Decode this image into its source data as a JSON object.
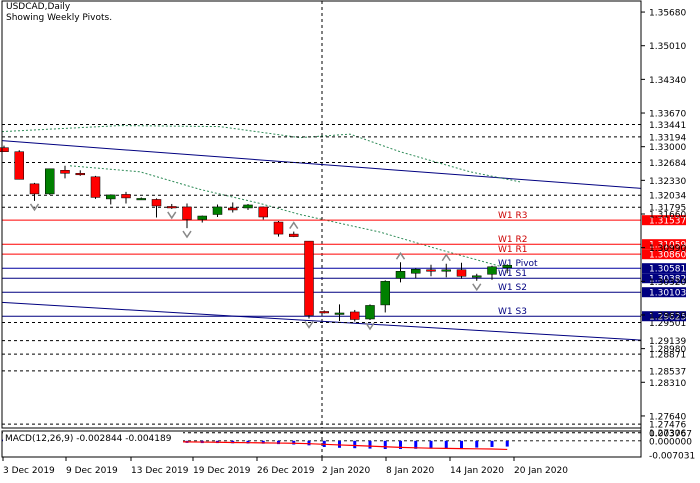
{
  "header": {
    "symbol_line": "USDCAD,Daily",
    "subtitle": "Showing Weekly Pivots."
  },
  "macd_label": "MACD(12,26,9) -0.002844 -0.004189",
  "chart_data": {
    "type": "candlestick",
    "title": "USDCAD,Daily",
    "subtitle": "Showing Weekly Pivots.",
    "ylim": [
      1.274,
      1.359
    ],
    "y_ticks": [
      "1.35680",
      "1.35010",
      "1.34340",
      "1.33670",
      "1.33000",
      "1.32330",
      "1.31660",
      "1.30990",
      "1.30320",
      "1.29650",
      "1.28980",
      "1.28310",
      "1.27640"
    ],
    "x_ticks": [
      "3 Dec 2019",
      "9 Dec 2019",
      "13 Dec 2019",
      "19 Dec 2019",
      "26 Dec 2019",
      "2 Jan 2020",
      "8 Jan 2020",
      "14 Jan 2020",
      "20 Jan 2020"
    ],
    "candles": [
      {
        "o": 1.3298,
        "h": 1.3302,
        "l": 1.329,
        "c": 1.329
      },
      {
        "o": 1.329,
        "h": 1.3293,
        "l": 1.3235,
        "c": 1.3235
      },
      {
        "o": 1.3226,
        "h": 1.3228,
        "l": 1.3192,
        "c": 1.3206
      },
      {
        "o": 1.3206,
        "h": 1.3256,
        "l": 1.3204,
        "c": 1.3256
      },
      {
        "o": 1.3253,
        "h": 1.3262,
        "l": 1.3237,
        "c": 1.3247
      },
      {
        "o": 1.3247,
        "h": 1.3253,
        "l": 1.3242,
        "c": 1.3245
      },
      {
        "o": 1.324,
        "h": 1.3242,
        "l": 1.3196,
        "c": 1.3199
      },
      {
        "o": 1.3196,
        "h": 1.3205,
        "l": 1.3185,
        "c": 1.3204
      },
      {
        "o": 1.3205,
        "h": 1.321,
        "l": 1.3187,
        "c": 1.3198
      },
      {
        "o": 1.3196,
        "h": 1.3199,
        "l": 1.3194,
        "c": 1.3197
      },
      {
        "o": 1.3195,
        "h": 1.3197,
        "l": 1.3159,
        "c": 1.3182
      },
      {
        "o": 1.3181,
        "h": 1.3186,
        "l": 1.3176,
        "c": 1.318
      },
      {
        "o": 1.318,
        "h": 1.3187,
        "l": 1.3138,
        "c": 1.3155
      },
      {
        "o": 1.3155,
        "h": 1.3163,
        "l": 1.3149,
        "c": 1.3162
      },
      {
        "o": 1.3165,
        "h": 1.3185,
        "l": 1.316,
        "c": 1.318
      },
      {
        "o": 1.3178,
        "h": 1.3189,
        "l": 1.3169,
        "c": 1.3174
      },
      {
        "o": 1.3178,
        "h": 1.3186,
        "l": 1.3174,
        "c": 1.3184
      },
      {
        "o": 1.318,
        "h": 1.3181,
        "l": 1.3155,
        "c": 1.316
      },
      {
        "o": 1.315,
        "h": 1.3152,
        "l": 1.3121,
        "c": 1.3126
      },
      {
        "o": 1.3126,
        "h": 1.3131,
        "l": 1.312,
        "c": 1.3121
      },
      {
        "o": 1.3112,
        "h": 1.3112,
        "l": 1.2958,
        "c": 1.2964
      },
      {
        "o": 1.2972,
        "h": 1.2974,
        "l": 1.2968,
        "c": 1.2969
      },
      {
        "o": 1.2969,
        "h": 1.2986,
        "l": 1.2953,
        "c": 1.2969
      },
      {
        "o": 1.2971,
        "h": 1.2975,
        "l": 1.2952,
        "c": 1.2956
      },
      {
        "o": 1.2957,
        "h": 1.2986,
        "l": 1.2955,
        "c": 1.2984
      },
      {
        "o": 1.2985,
        "h": 1.3034,
        "l": 1.297,
        "c": 1.3032
      },
      {
        "o": 1.3038,
        "h": 1.307,
        "l": 1.303,
        "c": 1.3052
      },
      {
        "o": 1.3048,
        "h": 1.3058,
        "l": 1.3038,
        "c": 1.3056
      },
      {
        "o": 1.3055,
        "h": 1.3065,
        "l": 1.3042,
        "c": 1.3052
      },
      {
        "o": 1.3052,
        "h": 1.3067,
        "l": 1.304,
        "c": 1.3055
      },
      {
        "o": 1.3055,
        "h": 1.3069,
        "l": 1.3037,
        "c": 1.3042
      },
      {
        "o": 1.3042,
        "h": 1.3047,
        "l": 1.3033,
        "c": 1.3043
      },
      {
        "o": 1.3046,
        "h": 1.3063,
        "l": 1.3035,
        "c": 1.3061
      },
      {
        "o": 1.3059,
        "h": 1.3066,
        "l": 1.3048,
        "c": 1.3064
      }
    ],
    "pivot_levels": [
      {
        "name": "W1 R3",
        "value": 1.31537
      },
      {
        "name": "W1 R2",
        "value": 1.31059
      },
      {
        "name": "W1 R1",
        "value": 1.3086
      },
      {
        "name": "W1 Pivot",
        "value": 1.30581
      },
      {
        "name": "W1 S1",
        "value": 1.30382
      },
      {
        "name": "W1 S2",
        "value": 1.30103
      },
      {
        "name": "W1 S3",
        "value": 1.29625
      }
    ],
    "price_labels": [
      "1.33441",
      "1.33194",
      "1.32684",
      "1.32034",
      "1.31795",
      "1.29501",
      "1.29139",
      "1.28871",
      "1.28537",
      "1.27476",
      "1.27306"
    ],
    "macd": {
      "label": "MACD(12,26,9) -0.002844 -0.004189",
      "y_ticks": [
        "0.003767",
        "0.000000",
        "-0.007031"
      ],
      "ylim": [
        -0.0079,
        0.0048
      ],
      "histogram": [
        0.0006,
        0.0005,
        0.0003,
        0.0002,
        0.0001,
        -0.0001,
        -0.0003,
        -0.0005,
        -0.0006,
        -0.0007,
        -0.0008,
        -0.0009,
        -0.001,
        -0.0011,
        -0.0011,
        -0.0012,
        -0.0013,
        -0.0014,
        -0.0016,
        -0.0018,
        -0.0022,
        -0.003,
        -0.0034,
        -0.0036,
        -0.0038,
        -0.004,
        -0.004,
        -0.0039,
        -0.0038,
        -0.0037,
        -0.0036,
        -0.0033,
        -0.003,
        -0.0028
      ],
      "signal": [
        0.0006,
        0.0006,
        0.0005,
        0.0005,
        0.0004,
        0.0003,
        0.0002,
        0.0001,
        0.0,
        -0.0001,
        -0.0002,
        -0.0004,
        -0.0005,
        -0.0006,
        -0.0007,
        -0.0008,
        -0.0009,
        -0.001,
        -0.0011,
        -0.0012,
        -0.0014,
        -0.0017,
        -0.002,
        -0.0023,
        -0.0026,
        -0.0029,
        -0.0032,
        -0.0034,
        -0.0036,
        -0.0037,
        -0.0038,
        -0.0039,
        -0.004,
        -0.0042
      ]
    }
  },
  "colors": {
    "bull": "#008000",
    "bear": "#ff0000",
    "pivot": "#ff0000",
    "pivot_line": "#0000a0",
    "s_line": "#000080",
    "trend": "#000080",
    "ma": "#2e8b57",
    "grid": "#000000",
    "label_bg": "#000080",
    "fractal": "#888888",
    "hist": "#0000ff",
    "signal": "#ff0000"
  }
}
